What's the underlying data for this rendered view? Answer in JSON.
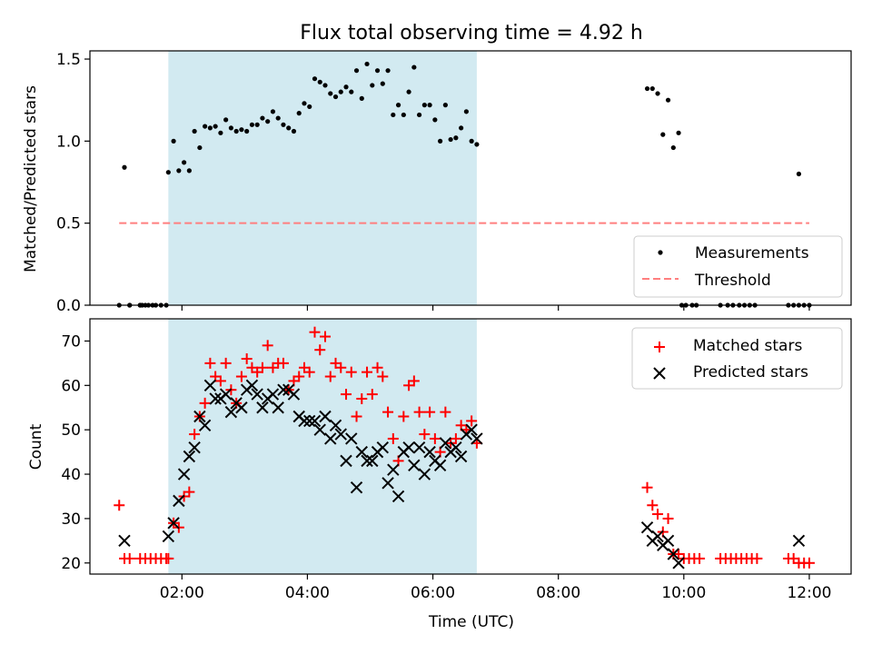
{
  "chart_data": [
    {
      "type": "scatter",
      "title": "Flux total observing time = 4.92 h",
      "xlabel": "",
      "ylabel": "Matched/Predicted stars",
      "xlim": [
        "00:32",
        "12:40"
      ],
      "ylim": [
        0,
        1.55
      ],
      "yticks": [
        0.0,
        0.5,
        1.0,
        1.5
      ],
      "ytick_labels": [
        "0.0",
        "0.5",
        "1.0",
        "1.5"
      ],
      "shaded_region": {
        "start": "01:47",
        "end": "06:42",
        "color": "#add8e6"
      },
      "legend": {
        "placement": "lower-right",
        "entries": [
          "Measurements",
          "Threshold"
        ]
      },
      "series": [
        {
          "name": "Measurements",
          "style": "dot",
          "color": "#000000",
          "x": [
            "01:05",
            "01:10",
            "01:20",
            "01:47",
            "01:52",
            "01:57",
            "02:02",
            "02:07",
            "02:12",
            "02:17",
            "02:22",
            "02:27",
            "02:32",
            "02:37",
            "02:42",
            "02:47",
            "02:52",
            "02:57",
            "03:02",
            "03:07",
            "03:12",
            "03:17",
            "03:22",
            "03:27",
            "03:32",
            "03:37",
            "03:42",
            "03:47",
            "03:52",
            "03:57",
            "04:02",
            "04:07",
            "04:12",
            "04:17",
            "04:22",
            "04:27",
            "04:32",
            "04:37",
            "04:42",
            "04:47",
            "04:52",
            "04:57",
            "05:02",
            "05:07",
            "05:12",
            "05:17",
            "05:22",
            "05:27",
            "05:32",
            "05:37",
            "05:42",
            "05:47",
            "05:52",
            "05:57",
            "06:02",
            "06:07",
            "06:12",
            "06:17",
            "06:22",
            "06:27",
            "06:32",
            "06:37",
            "06:42",
            "09:25",
            "09:30",
            "09:35",
            "09:40",
            "09:45",
            "09:50",
            "09:55",
            "11:50"
          ],
          "y": [
            0.84,
            0.0,
            0.0,
            0.81,
            1.0,
            0.82,
            0.87,
            0.82,
            1.06,
            0.96,
            1.09,
            1.08,
            1.09,
            1.05,
            1.13,
            1.08,
            1.06,
            1.07,
            1.06,
            1.1,
            1.1,
            1.14,
            1.12,
            1.18,
            1.14,
            1.1,
            1.08,
            1.06,
            1.17,
            1.23,
            1.21,
            1.38,
            1.36,
            1.34,
            1.29,
            1.27,
            1.3,
            1.33,
            1.3,
            1.43,
            1.26,
            1.47,
            1.34,
            1.43,
            1.35,
            1.43,
            1.16,
            1.22,
            1.16,
            1.3,
            1.45,
            1.16,
            1.22,
            1.22,
            1.13,
            1.0,
            1.22,
            1.01,
            1.02,
            1.08,
            1.18,
            1.0,
            0.98,
            1.32,
            1.32,
            1.29,
            1.04,
            1.25,
            0.96,
            1.05,
            0.8
          ],
          "zeros_x": [
            "01:00",
            "01:10",
            "01:20",
            "01:22",
            "01:25",
            "01:28",
            "01:32",
            "01:35",
            "01:40",
            "01:45",
            "09:58",
            "10:02",
            "10:08",
            "10:12",
            "10:35",
            "10:42",
            "10:47",
            "10:53",
            "10:58",
            "11:03",
            "11:08",
            "11:40",
            "11:45",
            "11:50",
            "11:55",
            "12:00"
          ]
        },
        {
          "name": "Threshold",
          "style": "dashed-line",
          "color": "#ff7f7f",
          "x": [
            "01:00",
            "12:00"
          ],
          "y": [
            0.5,
            0.5
          ]
        }
      ]
    },
    {
      "type": "scatter",
      "title": "",
      "xlabel": "Time (UTC)",
      "ylabel": "Count",
      "xlim": [
        "00:32",
        "12:40"
      ],
      "ylim": [
        17.5,
        75
      ],
      "yticks": [
        20,
        30,
        40,
        50,
        60,
        70
      ],
      "ytick_labels": [
        "20",
        "30",
        "40",
        "50",
        "60",
        "70"
      ],
      "xtick_labels": [
        "02:00",
        "04:00",
        "06:00",
        "08:00",
        "10:00",
        "12:00"
      ],
      "shaded_region": {
        "start": "01:47",
        "end": "06:42",
        "color": "#add8e6"
      },
      "legend": {
        "placement": "top-right",
        "entries": [
          "Matched stars",
          "Predicted stars"
        ]
      },
      "series": [
        {
          "name": "Matched stars",
          "marker": "plus",
          "color": "#ff0000",
          "x": [
            "01:00",
            "01:05",
            "01:10",
            "01:20",
            "01:25",
            "01:30",
            "01:35",
            "01:40",
            "01:45",
            "01:47",
            "01:52",
            "01:57",
            "02:02",
            "02:07",
            "02:12",
            "02:17",
            "02:22",
            "02:27",
            "02:32",
            "02:37",
            "02:42",
            "02:47",
            "02:52",
            "02:57",
            "03:02",
            "03:07",
            "03:12",
            "03:17",
            "03:22",
            "03:27",
            "03:32",
            "03:37",
            "03:42",
            "03:47",
            "03:52",
            "03:57",
            "04:02",
            "04:07",
            "04:12",
            "04:17",
            "04:22",
            "04:27",
            "04:32",
            "04:37",
            "04:42",
            "04:47",
            "04:52",
            "04:57",
            "05:02",
            "05:07",
            "05:12",
            "05:17",
            "05:22",
            "05:27",
            "05:32",
            "05:37",
            "05:42",
            "05:47",
            "05:52",
            "05:57",
            "06:02",
            "06:07",
            "06:12",
            "06:17",
            "06:22",
            "06:27",
            "06:32",
            "06:37",
            "06:42",
            "09:25",
            "09:30",
            "09:35",
            "09:40",
            "09:45",
            "09:50",
            "09:55",
            "10:00",
            "10:05",
            "10:10",
            "10:15",
            "10:35",
            "10:40",
            "10:45",
            "10:50",
            "10:55",
            "11:00",
            "11:05",
            "11:10",
            "11:40",
            "11:45",
            "11:50",
            "11:55",
            "12:00"
          ],
          "y": [
            33,
            21,
            21,
            21,
            21,
            21,
            21,
            21,
            21,
            21,
            29,
            28,
            35,
            36,
            49,
            53,
            56,
            65,
            62,
            61,
            65,
            59,
            56,
            62,
            66,
            64,
            63,
            64,
            69,
            64,
            65,
            65,
            59,
            61,
            62,
            64,
            63,
            72,
            68,
            71,
            62,
            65,
            64,
            58,
            63,
            53,
            57,
            63,
            58,
            64,
            62,
            54,
            48,
            43,
            53,
            60,
            61,
            54,
            49,
            54,
            48,
            45,
            54,
            47,
            48,
            51,
            50,
            52,
            47,
            37,
            33,
            31,
            27,
            30,
            22,
            22,
            21,
            21,
            21,
            21,
            21,
            21,
            21,
            21,
            21,
            21,
            21,
            21,
            21,
            21,
            20,
            20,
            20
          ]
        },
        {
          "name": "Predicted stars",
          "marker": "x",
          "color": "#000000",
          "x": [
            "01:05",
            "01:47",
            "01:52",
            "01:57",
            "02:02",
            "02:07",
            "02:12",
            "02:17",
            "02:22",
            "02:27",
            "02:32",
            "02:37",
            "02:42",
            "02:47",
            "02:52",
            "02:57",
            "03:02",
            "03:07",
            "03:12",
            "03:17",
            "03:22",
            "03:27",
            "03:32",
            "03:37",
            "03:42",
            "03:47",
            "03:52",
            "03:57",
            "04:02",
            "04:07",
            "04:12",
            "04:17",
            "04:22",
            "04:27",
            "04:32",
            "04:37",
            "04:42",
            "04:47",
            "04:52",
            "04:57",
            "05:02",
            "05:07",
            "05:12",
            "05:17",
            "05:22",
            "05:27",
            "05:32",
            "05:37",
            "05:42",
            "05:47",
            "05:52",
            "05:57",
            "06:02",
            "06:07",
            "06:12",
            "06:17",
            "06:22",
            "06:27",
            "06:32",
            "06:37",
            "06:42",
            "09:25",
            "09:30",
            "09:35",
            "09:40",
            "09:45",
            "09:50",
            "09:55",
            "11:50"
          ],
          "y": [
            25,
            26,
            29,
            34,
            40,
            44,
            46,
            53,
            51,
            60,
            57,
            57,
            58,
            54,
            56,
            55,
            59,
            60,
            58,
            55,
            57,
            58,
            55,
            59,
            59,
            58,
            53,
            52,
            52,
            52,
            50,
            53,
            48,
            51,
            49,
            43,
            48,
            37,
            45,
            43,
            43,
            45,
            46,
            38,
            41,
            35,
            45,
            46,
            42,
            46,
            40,
            45,
            43,
            42,
            47,
            45,
            46,
            44,
            49,
            50,
            48,
            28,
            25,
            26,
            24,
            25,
            22,
            20,
            25
          ]
        }
      ]
    }
  ]
}
